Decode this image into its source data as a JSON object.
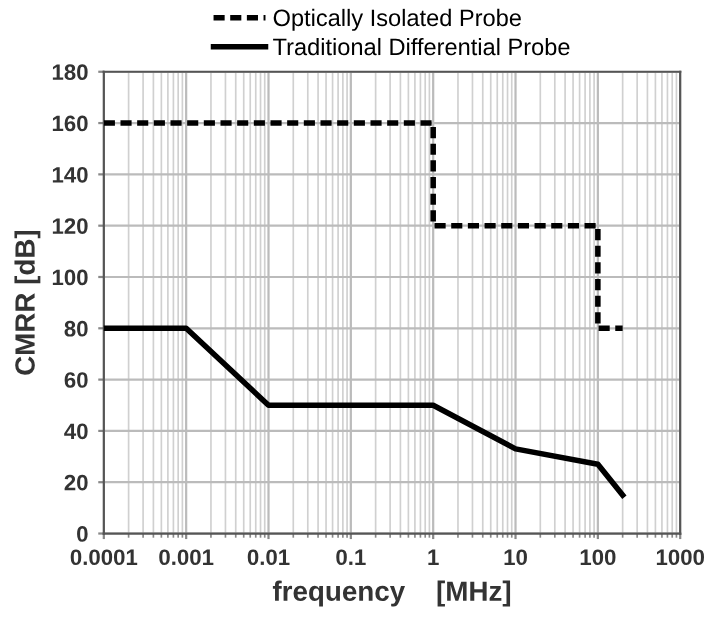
{
  "chart_data": {
    "type": "line",
    "xlabel": "frequency    [MHz]",
    "ylabel": "CMRR [dB]",
    "log": "x",
    "xlim": [
      0.0001,
      1000
    ],
    "xticks": [
      0.0001,
      0.001,
      0.01,
      0.1,
      1,
      10,
      100,
      1000
    ],
    "ylim": [
      0,
      180
    ],
    "yticks": [
      0,
      20,
      40,
      60,
      80,
      100,
      120,
      140,
      160,
      180
    ],
    "grid": true,
    "legend": "top",
    "marker": "none",
    "series": [
      {
        "name": "Optically Isolated Probe",
        "color": "#000000",
        "line_style": "dashed",
        "x": [
          0.0001,
          1,
          1,
          100,
          100,
          200
        ],
        "values": [
          160,
          160,
          120,
          120,
          80,
          80
        ]
      },
      {
        "name": "Traditional Differential Probe",
        "color": "#000000",
        "line_style": "solid",
        "x": [
          0.0001,
          0.001,
          0.01,
          1,
          10,
          100,
          200
        ],
        "values": [
          80,
          80,
          50,
          50,
          33,
          27,
          15
        ]
      }
    ]
  }
}
